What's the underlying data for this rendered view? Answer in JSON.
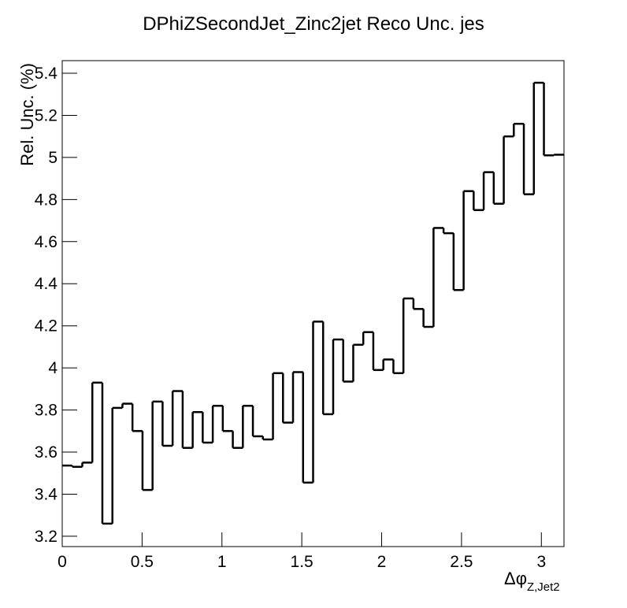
{
  "chart_data": {
    "type": "histogram",
    "title": "DPhiZSecondJet_Zinc2jet Reco Unc. jes",
    "ylabel": "Rel. Unc. (%)",
    "xlabel": "Δφ",
    "xlabel_subscript": "Z,Jet2",
    "color": "#000000",
    "bins": [
      0,
      0.0628,
      0.1257,
      0.1885,
      0.2513,
      0.3142,
      0.377,
      0.4398,
      0.5027,
      0.5655,
      0.6283,
      0.6912,
      0.754,
      0.8168,
      0.8796,
      0.9425,
      1.0053,
      1.0681,
      1.131,
      1.1938,
      1.2566,
      1.3195,
      1.3823,
      1.4451,
      1.508,
      1.5708,
      1.6336,
      1.6965,
      1.7593,
      1.8221,
      1.885,
      1.9478,
      2.0106,
      2.0735,
      2.1363,
      2.1991,
      2.2619,
      2.3248,
      2.3876,
      2.4504,
      2.5133,
      2.5761,
      2.6389,
      2.7018,
      2.7646,
      2.8274,
      2.8903,
      2.9531,
      3.0159,
      3.0788,
      3.1416
    ],
    "values": [
      3.536,
      3.53,
      3.55,
      3.93,
      3.26,
      3.81,
      3.83,
      3.7,
      3.42,
      3.84,
      3.63,
      3.89,
      3.62,
      3.79,
      3.645,
      3.82,
      3.7,
      3.62,
      3.82,
      3.675,
      3.66,
      3.975,
      3.74,
      3.98,
      3.455,
      4.22,
      3.78,
      4.135,
      3.935,
      4.11,
      4.17,
      3.99,
      4.04,
      3.975,
      4.33,
      4.28,
      4.195,
      4.665,
      4.64,
      4.37,
      4.84,
      4.75,
      4.93,
      4.78,
      5.1,
      5.16,
      4.825,
      5.355,
      5.01,
      5.013
    ],
    "xlim": [
      0,
      3.1416
    ],
    "ylim": [
      3.151,
      5.46
    ],
    "xticks": [
      0,
      0.5,
      1,
      1.5,
      2,
      2.5,
      3
    ],
    "yticks": [
      3.2,
      3.4,
      3.6,
      3.8,
      4,
      4.2,
      4.4,
      4.6,
      4.8,
      5,
      5.2,
      5.4
    ]
  }
}
